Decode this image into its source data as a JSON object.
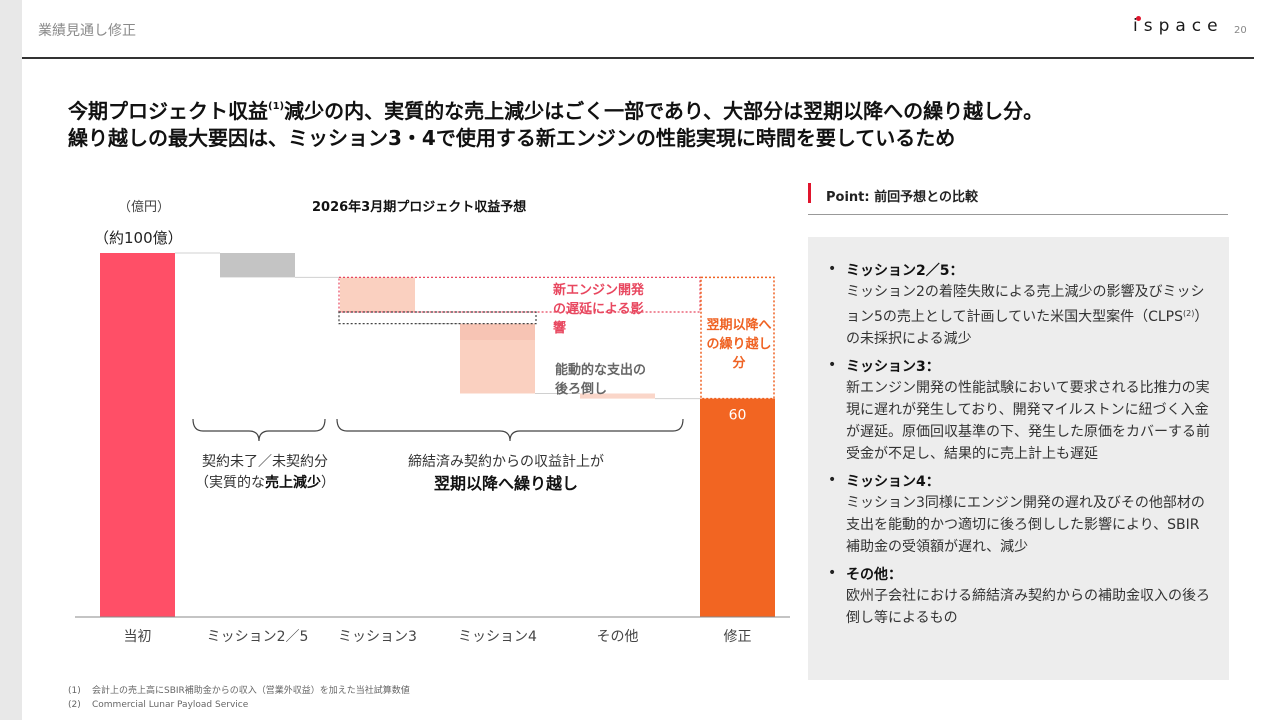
{
  "header": {
    "section": "業績見通し修正",
    "logo": "ispace",
    "page_number": "20"
  },
  "headline": {
    "line1_a": "今期プロジェクト収益",
    "line1_sup": "(1)",
    "line1_b": "減少の内、実質的な売上減少はごく一部であり、大部分は翌期以降への繰り越し分。",
    "line2": "繰り越しの最大要因は、ミッション3・4で使用する新エンジンの性能実現に時間を要しているため"
  },
  "chart_data": {
    "type": "bar",
    "subtype": "waterfall",
    "title": "2026年3月期プロジェクト収益予想",
    "unit_label": "（億円）",
    "start_label": "（約100億）",
    "ylim": [
      0,
      100
    ],
    "categories": [
      "当初",
      "ミッション2／5",
      "ミッション3",
      "ミッション4",
      "その他",
      "修正"
    ],
    "start_value": 100,
    "end_value": 60,
    "end_value_label": "60",
    "steps": [
      {
        "category": "ミッション2／5",
        "from": 100,
        "to": 93.3
      },
      {
        "category": "ミッション3",
        "from": 93.3,
        "to": 83.8
      },
      {
        "category": "ミッション3",
        "from": 83.8,
        "to": 80.6
      },
      {
        "category": "ミッション4",
        "from": 80.6,
        "to": 76.1
      },
      {
        "category": "ミッション4",
        "from": 76.1,
        "to": 61.4
      },
      {
        "category": "その他",
        "from": 61.4,
        "to": 60.0
      }
    ],
    "annotations": {
      "engine_delay": "新エンジン開発の遅延による影響",
      "proactive_cost": "能動的な支出の後ろ倒し",
      "carry_over": "翌期以降への繰り越し分"
    },
    "brace_labels": {
      "left_line1": "契約未了／未契約分",
      "left_line2_a": "（実質的な",
      "left_line2_b": "売上減少",
      "left_line2_c": "）",
      "right_line1": "締結済み契約からの収益計上が",
      "right_line2": "翌期以降へ繰り越し"
    },
    "colors": {
      "start": "#ff4f67",
      "end": "#f26522",
      "m25": "#c4c4c4",
      "engine": "#fad0c0",
      "cost": "#f7c4b4",
      "other": "#fad6c9",
      "carry_border": "#ef6223",
      "axis": "#888888"
    }
  },
  "point": {
    "title": "Point: 前回予想との比較",
    "items": [
      {
        "head": "ミッション2／5：",
        "body_a": "ミッション2の着陸失敗による売上減少の影響及びミッション5の売上として計画していた米国大型案件（CLPS",
        "sup": "(2)",
        "body_b": "）の未採択による減少"
      },
      {
        "head": "ミッション3：",
        "body_a": "新エンジン開発の性能試験において要求される比推力の実現に遅れが発生しており、開発マイルストンに紐づく入金が遅延。原価回収基準の下、発生した原価をカバーする前受金が不足し、結果的に売上計上も遅延",
        "sup": "",
        "body_b": ""
      },
      {
        "head": "ミッション4：",
        "body_a": "ミッション3同様にエンジン開発の遅れ及びその他部材の支出を能動的かつ適切に後ろ倒しした影響により、SBIR補助金の受領額が遅れ、減少",
        "sup": "",
        "body_b": ""
      },
      {
        "head": "その他：",
        "body_a": "欧州子会社における締結済み契約からの補助金収入の後ろ倒し等によるもの",
        "sup": "",
        "body_b": ""
      }
    ]
  },
  "footnotes": [
    {
      "num": "(1)",
      "text": "会計上の売上高にSBIR補助金からの収入（営業外収益）を加えた当社試算数値"
    },
    {
      "num": "(2)",
      "text": "Commercial Lunar Payload Service"
    }
  ]
}
